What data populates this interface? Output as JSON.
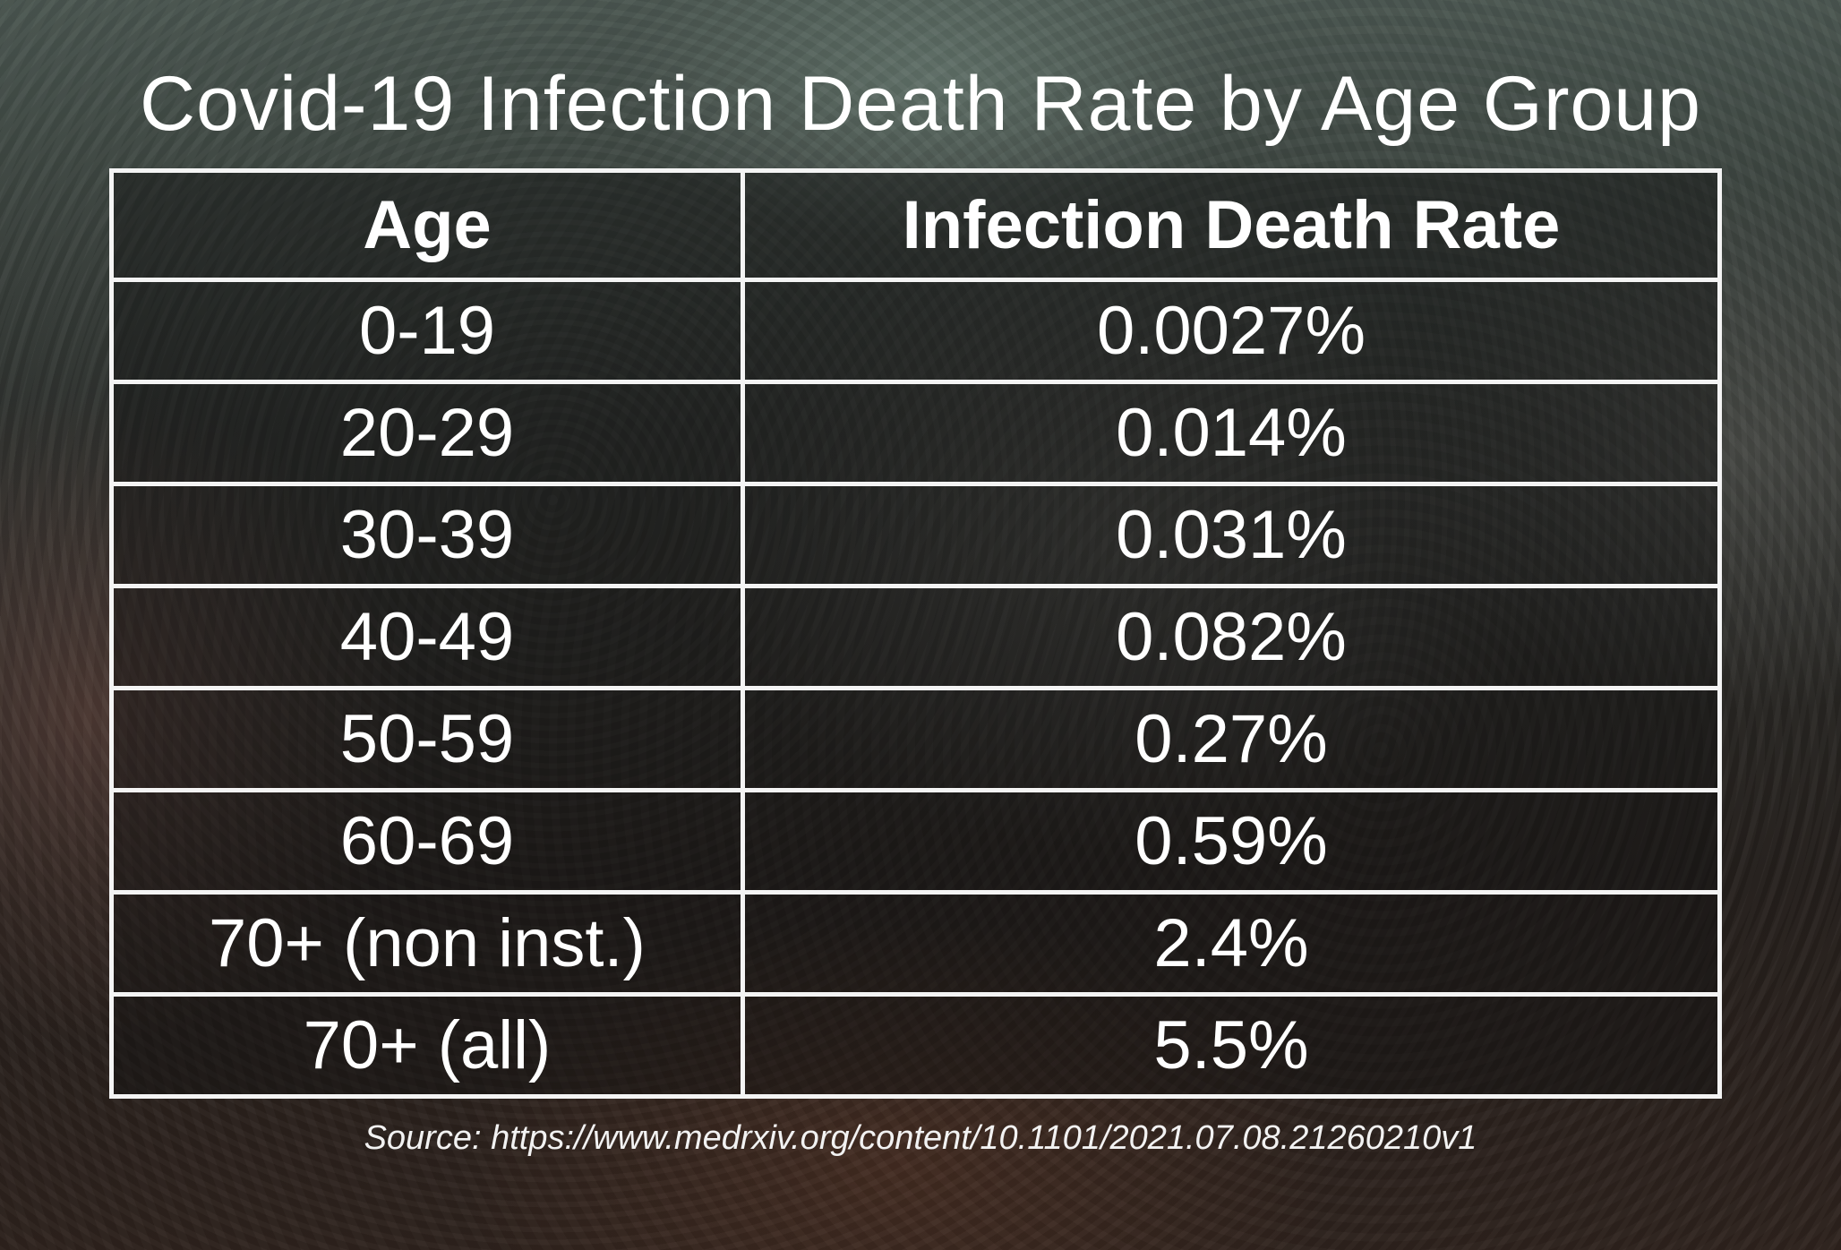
{
  "chart_data": {
    "type": "table",
    "title": "Covid-19 Infection Death Rate by Age Group",
    "columns": [
      "Age",
      "Infection Death Rate"
    ],
    "rows": [
      {
        "age": "0-19",
        "rate": "0.0027%"
      },
      {
        "age": "20-29",
        "rate": "0.014%"
      },
      {
        "age": "30-39",
        "rate": "0.031%"
      },
      {
        "age": "40-49",
        "rate": "0.082%"
      },
      {
        "age": "50-59",
        "rate": "0.27%"
      },
      {
        "age": "60-69",
        "rate": "0.59%"
      },
      {
        "age": "70+ (non inst.)",
        "rate": "2.4%"
      },
      {
        "age": "70+ (all)",
        "rate": "5.5%"
      }
    ],
    "values": [
      0.0027,
      0.014,
      0.031,
      0.082,
      0.27,
      0.59,
      2.4,
      5.5
    ],
    "unit": "%",
    "source": "Source: https://www.medrxiv.org/content/10.1101/2021.07.08.21260210v1"
  }
}
